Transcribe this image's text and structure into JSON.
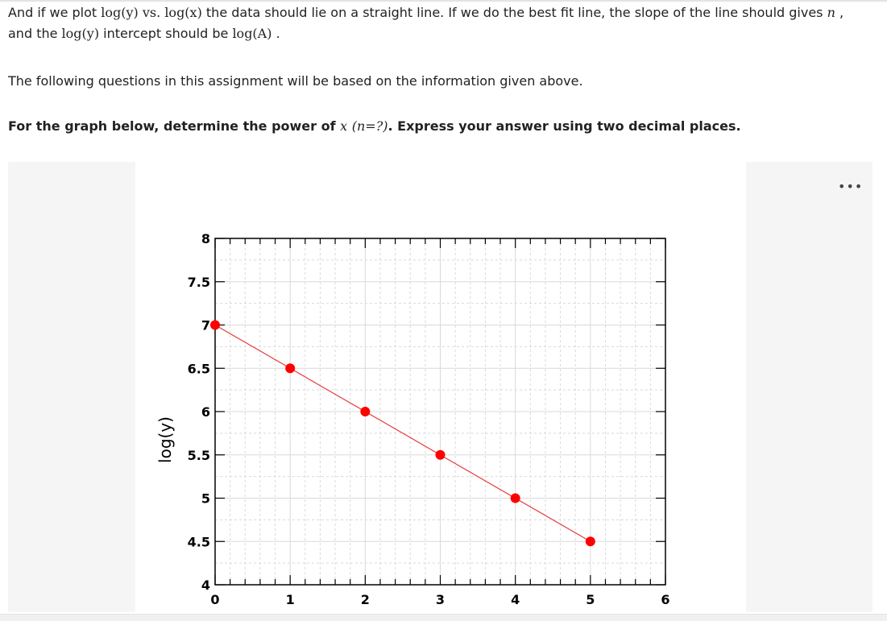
{
  "intro": {
    "line1_a": "And if we plot",
    "log_y": "log(y)",
    "vs": "vs.",
    "log_x": "log(x)",
    "line1_b": "the data should lie on a straight line. If we do the best fit line, the slope of the line should gives",
    "n": "n",
    "comma": ",",
    "line2_a": "and the",
    "line2_b": "intercept should be",
    "log_A": "log(A)",
    "period": "."
  },
  "note": "The following questions in this assignment will be based on the information given above.",
  "question": {
    "text_a": "For the graph below, determine the power of",
    "x": "x",
    "n_expr": "(n=?)",
    "text_b": ". Express your answer using two decimal places."
  },
  "more_label": "•••",
  "chart_data": {
    "type": "scatter",
    "xlabel": "",
    "ylabel": "log(y)",
    "xlim": [
      0,
      6
    ],
    "ylim": [
      4,
      8
    ],
    "x_ticks": [
      "0",
      "1",
      "2",
      "3",
      "4",
      "5",
      "6"
    ],
    "y_ticks": [
      "4",
      "4.5",
      "5",
      "5.5",
      "6",
      "6.5",
      "7",
      "7.5",
      "8"
    ],
    "grid": true,
    "fit_line": {
      "x": [
        0,
        5
      ],
      "y": [
        7,
        4.5
      ]
    },
    "series": [
      {
        "x": [
          0,
          1,
          2,
          3,
          4,
          5
        ],
        "y": [
          7,
          6.5,
          6,
          5.5,
          5,
          4.5
        ]
      }
    ],
    "colors": {
      "points": "#ff0000",
      "line": "#e83a3a",
      "grid": "#d9d9d9"
    }
  }
}
